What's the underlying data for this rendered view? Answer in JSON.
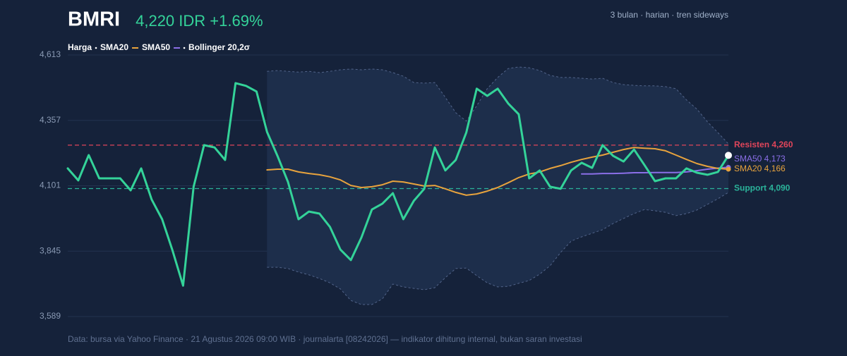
{
  "chart_data": {
    "type": "line",
    "title": "BMRI",
    "price_label": "4,220 IDR +1.69%",
    "subtitle": "3 bulan · harian · tren sideways",
    "source": "Data: bursa via Yahoo Finance · 21 Agustus 2026 09:00 WIB · journalarta [08242026] — indikator dihitung internal, bukan saran investasi",
    "ylim": [
      3589,
      4613
    ],
    "yticks": [
      {
        "value": 3589,
        "label": "3,589"
      },
      {
        "value": 3845,
        "label": "3,845"
      },
      {
        "value": 4101,
        "label": "4,101"
      },
      {
        "value": 4357,
        "label": "4,357"
      },
      {
        "value": 4613,
        "label": "4,613"
      }
    ],
    "grid": true,
    "series": [
      {
        "name": "Harga",
        "color": "#34d399",
        "end_marker": "#ffffff",
        "values": [
          4169,
          4122,
          4221,
          4130,
          4130,
          4130,
          4083,
          4169,
          4047,
          3970,
          3846,
          3710,
          4097,
          4260,
          4251,
          4202,
          4503,
          4492,
          4470,
          4312,
          4218,
          4116,
          3970,
          4000,
          3992,
          3940,
          3851,
          3810,
          3898,
          4008,
          4031,
          4072,
          3970,
          4042,
          4089,
          4251,
          4161,
          4202,
          4309,
          4481,
          4453,
          4481,
          4423,
          4381,
          4130,
          4161,
          4097,
          4089,
          4161,
          4191,
          4171,
          4260,
          4218,
          4196,
          4243,
          4182,
          4119,
          4130,
          4130,
          4169,
          4152,
          4144,
          4155,
          4220
        ]
      },
      {
        "name": "SMA20",
        "color": "#e8a33d",
        "end_label": "SMA20 4,166",
        "values": [
          null,
          null,
          null,
          null,
          null,
          null,
          null,
          null,
          null,
          null,
          null,
          null,
          null,
          null,
          null,
          null,
          null,
          null,
          null,
          4163,
          4166,
          4166,
          4155,
          4149,
          4144,
          4136,
          4124,
          4102,
          4094,
          4097,
          4105,
          4119,
          4116,
          4108,
          4100,
          4102,
          4089,
          4075,
          4064,
          4069,
          4080,
          4094,
          4113,
          4133,
          4147,
          4155,
          4169,
          4180,
          4193,
          4204,
          4213,
          4221,
          4232,
          4243,
          4251,
          4248,
          4246,
          4238,
          4221,
          4204,
          4188,
          4177,
          4169,
          4166
        ]
      },
      {
        "name": "SMA50",
        "color": "#8b6fe8",
        "end_label": "SMA50 4,173",
        "values": [
          null,
          null,
          null,
          null,
          null,
          null,
          null,
          null,
          null,
          null,
          null,
          null,
          null,
          null,
          null,
          null,
          null,
          null,
          null,
          null,
          null,
          null,
          null,
          null,
          null,
          null,
          null,
          null,
          null,
          null,
          null,
          null,
          null,
          null,
          null,
          null,
          null,
          null,
          null,
          null,
          null,
          null,
          null,
          null,
          null,
          null,
          null,
          null,
          null,
          4147,
          4147,
          4149,
          4149,
          4150,
          4152,
          4152,
          4153,
          4153,
          4153,
          4155,
          4160,
          4166,
          4170,
          4173
        ]
      }
    ],
    "bollinger": {
      "name": "Bollinger 20,2σ",
      "color": "#52648a",
      "fill": "#1d2e4b",
      "upper": [
        null,
        null,
        null,
        null,
        null,
        null,
        null,
        null,
        null,
        null,
        null,
        null,
        null,
        null,
        null,
        null,
        null,
        null,
        null,
        4549,
        4552,
        4549,
        4546,
        4549,
        4544,
        4549,
        4555,
        4558,
        4555,
        4558,
        4555,
        4544,
        4530,
        4505,
        4503,
        4505,
        4447,
        4387,
        4354,
        4414,
        4481,
        4525,
        4560,
        4566,
        4563,
        4552,
        4533,
        4525,
        4525,
        4522,
        4519,
        4522,
        4505,
        4497,
        4494,
        4492,
        4492,
        4489,
        4481,
        4437,
        4401,
        4351,
        4309,
        4265
      ],
      "lower": [
        null,
        null,
        null,
        null,
        null,
        null,
        null,
        null,
        null,
        null,
        null,
        null,
        null,
        null,
        null,
        null,
        null,
        null,
        null,
        3782,
        3782,
        3777,
        3763,
        3752,
        3738,
        3721,
        3697,
        3652,
        3636,
        3636,
        3658,
        3716,
        3705,
        3699,
        3694,
        3702,
        3741,
        3777,
        3779,
        3749,
        3721,
        3705,
        3707,
        3719,
        3730,
        3755,
        3788,
        3840,
        3884,
        3901,
        3915,
        3929,
        3953,
        3973,
        3992,
        4008,
        4003,
        3997,
        3984,
        3992,
        4006,
        4028,
        4050,
        4075
      ]
    },
    "levels": [
      {
        "value": 4260,
        "label": "Resisten 4,260",
        "color": "#e0455a"
      },
      {
        "value": 4090,
        "label": "Support 4,090",
        "color": "#2bb39a"
      }
    ]
  }
}
